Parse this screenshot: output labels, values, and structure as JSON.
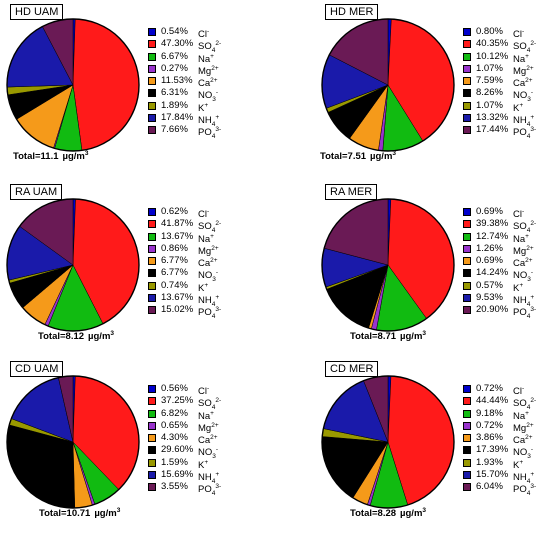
{
  "colors": [
    "#0000cc",
    "#ff1a1a",
    "#11bb11",
    "#9933cc",
    "#f59a1a",
    "#000000",
    "#999900",
    "#1a1aaa",
    "#6a1a55"
  ],
  "units": "µg/m",
  "unit_exp": "3",
  "chart_data": [
    {
      "type": "pie",
      "title": "HD UAM",
      "total_label": "Total=11.1",
      "labels": [
        "0.54%",
        "47.30%",
        "6.67%",
        "0.27%",
        "11.53%",
        "6.31%",
        "1.89%",
        "17.84%",
        "7.66%"
      ],
      "categories": [
        "Cl-",
        "SO42-",
        "Na+",
        "Mg2+",
        "Ca2+",
        "NO3-",
        "K+",
        "NH4+",
        "PO43-"
      ],
      "values": [
        0.54,
        47.3,
        6.67,
        0.27,
        11.53,
        6.31,
        1.89,
        17.84,
        7.66
      ]
    },
    {
      "type": "pie",
      "title": "HD MER",
      "total_label": "Total=7.51",
      "labels": [
        "0.80%",
        "40.35%",
        "10.12%",
        "1.07%",
        "7.59%",
        "8.26%",
        "1.07%",
        "13.32%",
        "17.44%"
      ],
      "categories": [
        "Cl-",
        "SO42-",
        "Na+",
        "Mg2+",
        "Ca2+",
        "NO3-",
        "K+",
        "NH4+",
        "PO43-"
      ],
      "values": [
        0.8,
        40.35,
        10.12,
        1.07,
        7.59,
        8.26,
        1.07,
        13.32,
        17.44
      ]
    },
    {
      "type": "pie",
      "title": "RA UAM",
      "total_label": "Total=8.12",
      "labels": [
        "0.62%",
        "41.87%",
        "13.67%",
        "0.86%",
        "6.77%",
        "6.77%",
        "0.74%",
        "13.67%",
        "15.02%"
      ],
      "categories": [
        "Cl-",
        "SO42-",
        "Na+",
        "Mg2+",
        "Ca2+",
        "NO3-",
        "K+",
        "NH4+",
        "PO43-"
      ],
      "values": [
        0.62,
        41.87,
        13.67,
        0.86,
        6.77,
        6.77,
        0.74,
        13.67,
        15.02
      ]
    },
    {
      "type": "pie",
      "title": "RA MER",
      "total_label": "Total=8.71",
      "labels": [
        "0.69%",
        "39.38%",
        "12.74%",
        "1.26%",
        "0.69%",
        "14.24%",
        "0.57%",
        "9.53%",
        "20.90%"
      ],
      "categories": [
        "Cl-",
        "SO42-",
        "Na+",
        "Mg2+",
        "Ca2+",
        "NO3-",
        "K+",
        "NH4+",
        "PO43-"
      ],
      "values": [
        0.69,
        39.38,
        12.74,
        1.26,
        0.69,
        14.24,
        0.57,
        9.53,
        20.9
      ]
    },
    {
      "type": "pie",
      "title": "CD UAM",
      "total_label": "Total=10.71",
      "labels": [
        "0.56%",
        "37.25%",
        "6.82%",
        "0.65%",
        "4.30%",
        "29.60%",
        "1.59%",
        "15.69%",
        "3.55%"
      ],
      "categories": [
        "Cl-",
        "SO42-",
        "Na+",
        "Mg2+",
        "Ca2+",
        "NO3-",
        "K+",
        "NH4+",
        "PO43-"
      ],
      "values": [
        0.56,
        37.25,
        6.82,
        0.65,
        4.3,
        29.6,
        1.59,
        15.69,
        3.55
      ]
    },
    {
      "type": "pie",
      "title": "CD MER",
      "total_label": "Total=8.28",
      "labels": [
        "0.72%",
        "44.44%",
        "9.18%",
        "0.72%",
        "3.86%",
        "17.39%",
        "1.93%",
        "15.70%",
        "6.04%"
      ],
      "categories": [
        "Cl-",
        "SO42-",
        "Na+",
        "Mg2+",
        "Ca2+",
        "NO3-",
        "K+",
        "NH4+",
        "PO43-"
      ],
      "values": [
        0.72,
        44.44,
        9.18,
        0.72,
        3.86,
        17.39,
        1.93,
        15.7,
        6.04
      ]
    }
  ]
}
